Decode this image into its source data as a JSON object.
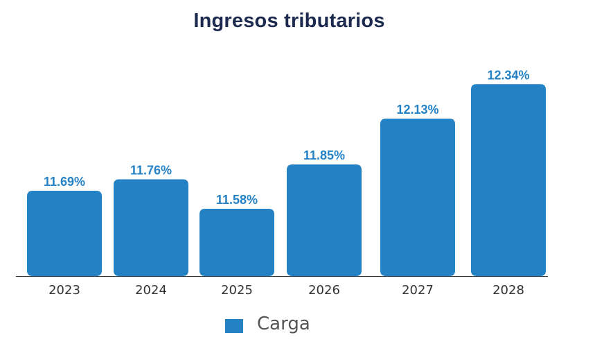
{
  "colors": {
    "bar": "#2481c4",
    "value_label": "#2481c4",
    "title": "#1b2a4e",
    "axis": "#333333"
  },
  "chart_data": {
    "type": "bar",
    "title": "Ingresos tributarios",
    "categories": [
      "2023",
      "2024",
      "2025",
      "2026",
      "2027",
      "2028"
    ],
    "series": [
      {
        "name": "Carga",
        "values": [
          11.69,
          11.76,
          11.58,
          11.85,
          12.13,
          12.34
        ]
      }
    ],
    "value_labels": [
      "11.69%",
      "11.76%",
      "11.58%",
      "11.85%",
      "12.13%",
      "12.34%"
    ],
    "xlabel": "",
    "ylabel": "",
    "ylim": [
      11.17,
      12.43
    ],
    "grid": false,
    "legend": "bottom-center"
  }
}
